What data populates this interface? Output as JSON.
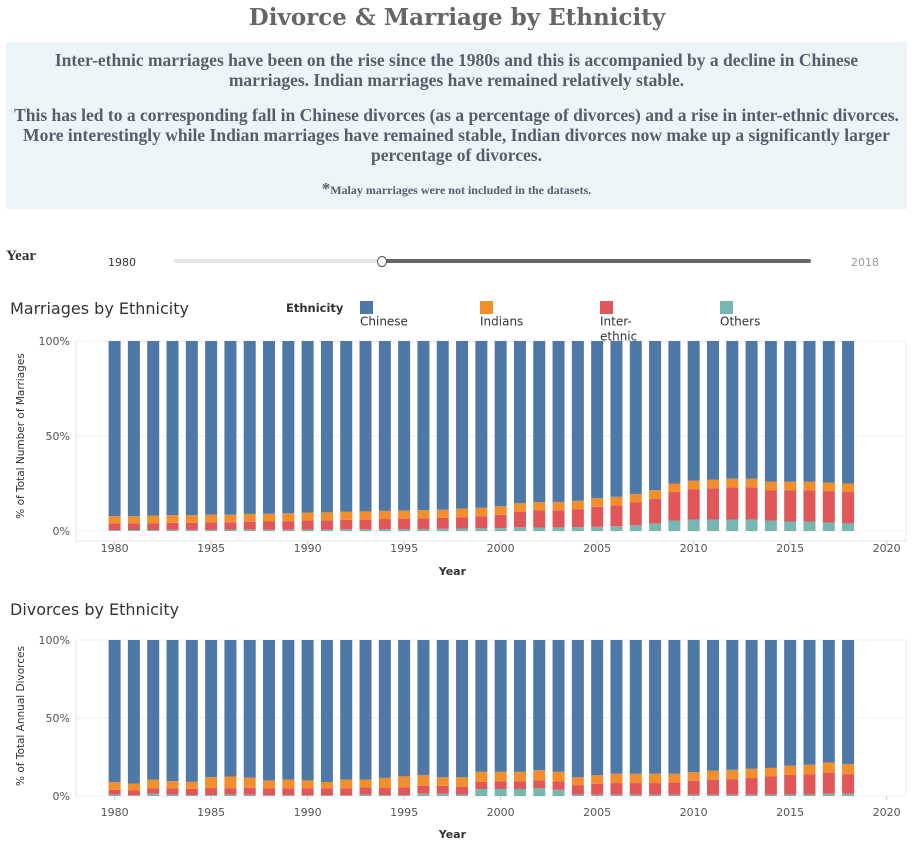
{
  "page": {
    "title": "Divorce & Marriage by Ethnicity",
    "info_paragraph_1": "Inter-ethnic marriages have been on the rise since the 1980s and this is accompanied by a decline in Chinese marriages. Indian marriages have remained relatively stable.",
    "info_paragraph_2": "This has led to a corresponding fall in Chinese divorces (as a percentage of divorces) and a rise in inter-ethnic divorces. More interestingly while Indian marriages have remained stable, Indian divorces now make up a significantly larger percentage of divorces.",
    "note_asterisk": "*",
    "note_text": "Malay marriages were not included in the datasets."
  },
  "filter": {
    "label": "Year",
    "min_label": "1980",
    "max_label": "2018"
  },
  "legend": {
    "title": "Ethnicity",
    "items": [
      {
        "label": "Chinese",
        "color": "#4e79a7"
      },
      {
        "label": "Indians",
        "color": "#f28e2b"
      },
      {
        "label": "Inter-ethnic",
        "color": "#e15759"
      },
      {
        "label": "Others",
        "color": "#76b7b2"
      }
    ]
  },
  "chart_data": [
    {
      "type": "bar",
      "stacked": true,
      "title": "Marriages by Ethnicity",
      "xlabel": "Year",
      "ylabel": "% of Total Number of Marriages",
      "x_ticks": [
        1980,
        1985,
        1990,
        1995,
        2000,
        2005,
        2010,
        2015,
        2020
      ],
      "y_ticks": [
        "0%",
        "50%",
        "100%"
      ],
      "xlim": [
        1978,
        2021
      ],
      "ylim": [
        0,
        100
      ],
      "grid": true,
      "categories": [
        1980,
        1981,
        1982,
        1983,
        1984,
        1985,
        1986,
        1987,
        1988,
        1989,
        1990,
        1991,
        1992,
        1993,
        1994,
        1995,
        1996,
        1997,
        1998,
        1999,
        2000,
        2001,
        2002,
        2003,
        2004,
        2005,
        2006,
        2007,
        2008,
        2009,
        2010,
        2011,
        2012,
        2013,
        2014,
        2015,
        2016,
        2017,
        2018
      ],
      "series": [
        {
          "name": "Others",
          "values": [
            0.5,
            0.5,
            0.5,
            0.6,
            0.6,
            0.6,
            0.6,
            0.7,
            0.7,
            0.7,
            0.8,
            0.8,
            0.9,
            0.9,
            1.0,
            1.0,
            1.1,
            1.2,
            1.3,
            1.4,
            1.5,
            2.0,
            1.8,
            1.9,
            2.0,
            2.2,
            2.5,
            3.0,
            4.0,
            5.5,
            6.0,
            6.0,
            6.0,
            6.0,
            5.5,
            5.0,
            5.0,
            4.5,
            4.0
          ]
        },
        {
          "name": "Inter-ethnic",
          "values": [
            3.5,
            3.5,
            3.6,
            3.7,
            3.7,
            4.0,
            4.0,
            4.2,
            4.3,
            4.5,
            4.7,
            4.8,
            5.0,
            5.1,
            5.3,
            5.5,
            5.6,
            5.7,
            6.0,
            6.3,
            7.0,
            8.0,
            9.0,
            9.0,
            9.5,
            10.5,
            11.0,
            12.0,
            13.0,
            15.0,
            16.0,
            16.5,
            17.0,
            17.0,
            16.0,
            16.5,
            16.5,
            16.5,
            16.5
          ]
        },
        {
          "name": "Indians",
          "values": [
            3.8,
            3.8,
            4.0,
            4.0,
            4.0,
            4.0,
            4.0,
            4.1,
            4.1,
            4.1,
            4.2,
            4.2,
            4.2,
            4.3,
            4.3,
            4.3,
            4.3,
            4.3,
            4.5,
            4.5,
            4.5,
            4.6,
            4.4,
            4.4,
            4.4,
            4.6,
            4.5,
            4.5,
            4.5,
            4.5,
            4.5,
            4.5,
            4.5,
            4.5,
            4.5,
            4.5,
            4.5,
            4.5,
            4.5
          ]
        },
        {
          "name": "Chinese",
          "values": [
            92.2,
            92.2,
            91.9,
            91.7,
            91.7,
            91.4,
            91.4,
            91.0,
            90.9,
            90.7,
            90.3,
            90.2,
            89.9,
            89.7,
            89.4,
            89.2,
            89.0,
            88.8,
            88.2,
            87.8,
            87.0,
            85.4,
            84.8,
            84.7,
            84.1,
            82.7,
            82.0,
            80.5,
            78.5,
            75.0,
            73.5,
            73.0,
            72.5,
            72.5,
            74.0,
            74.0,
            74.0,
            74.5,
            75.0
          ]
        }
      ]
    },
    {
      "type": "bar",
      "stacked": true,
      "title": "Divorces by Ethnicity",
      "xlabel": "Year",
      "ylabel": "% of Total Annual Divorces",
      "x_ticks": [
        1980,
        1985,
        1990,
        1995,
        2000,
        2005,
        2010,
        2015,
        2020
      ],
      "y_ticks": [
        "0%",
        "50%",
        "100%"
      ],
      "xlim": [
        1978,
        2021
      ],
      "ylim": [
        0,
        100
      ],
      "grid": true,
      "categories": [
        1980,
        1981,
        1982,
        1983,
        1984,
        1985,
        1986,
        1987,
        1988,
        1989,
        1990,
        1991,
        1992,
        1993,
        1994,
        1995,
        1996,
        1997,
        1998,
        1999,
        2000,
        2001,
        2002,
        2003,
        2004,
        2005,
        2006,
        2007,
        2008,
        2009,
        2010,
        2011,
        2012,
        2013,
        2014,
        2015,
        2016,
        2017,
        2018
      ],
      "series": [
        {
          "name": "Others",
          "values": [
            1.0,
            0.5,
            1.5,
            1.0,
            0.6,
            0.6,
            1.0,
            0.8,
            0.5,
            0.5,
            0.5,
            0.5,
            0.5,
            1.0,
            0.6,
            0.6,
            1.5,
            1.5,
            1.0,
            4.5,
            4.5,
            4.5,
            5.0,
            4.0,
            1.0,
            0.8,
            0.8,
            0.8,
            0.8,
            0.8,
            0.8,
            0.8,
            0.8,
            1.0,
            1.0,
            1.0,
            1.0,
            1.5,
            1.5
          ]
        },
        {
          "name": "Inter-ethnic",
          "values": [
            3.0,
            3.0,
            3.5,
            4.0,
            4.0,
            4.5,
            4.0,
            4.5,
            4.5,
            4.5,
            4.5,
            4.5,
            4.5,
            4.5,
            4.5,
            5.0,
            5.0,
            5.0,
            5.0,
            4.5,
            5.0,
            5.0,
            5.0,
            5.5,
            6.0,
            7.0,
            7.5,
            7.5,
            7.5,
            8.0,
            9.0,
            9.5,
            10.0,
            10.5,
            11.5,
            12.5,
            13.0,
            13.5,
            12.5
          ]
        },
        {
          "name": "Indians",
          "values": [
            5.0,
            4.5,
            5.5,
            4.5,
            4.5,
            7.0,
            7.5,
            6.5,
            5.0,
            5.5,
            5.0,
            4.0,
            5.5,
            5.0,
            6.5,
            7.0,
            7.0,
            5.5,
            6.0,
            6.5,
            6.0,
            6.0,
            6.5,
            6.0,
            5.0,
            5.5,
            6.0,
            6.0,
            6.0,
            5.5,
            5.5,
            6.0,
            6.0,
            6.0,
            5.5,
            6.0,
            6.0,
            6.5,
            6.5
          ]
        },
        {
          "name": "Chinese",
          "values": [
            91.0,
            92.0,
            89.5,
            90.5,
            90.9,
            87.9,
            87.5,
            88.2,
            90.0,
            89.5,
            90.0,
            91.0,
            89.5,
            89.5,
            88.4,
            87.4,
            86.5,
            88.0,
            88.0,
            84.5,
            84.5,
            84.5,
            83.5,
            84.5,
            88.0,
            86.7,
            85.7,
            85.7,
            85.7,
            85.7,
            84.7,
            83.7,
            83.2,
            82.5,
            82.0,
            80.5,
            80.0,
            78.5,
            79.5
          ]
        }
      ]
    }
  ]
}
